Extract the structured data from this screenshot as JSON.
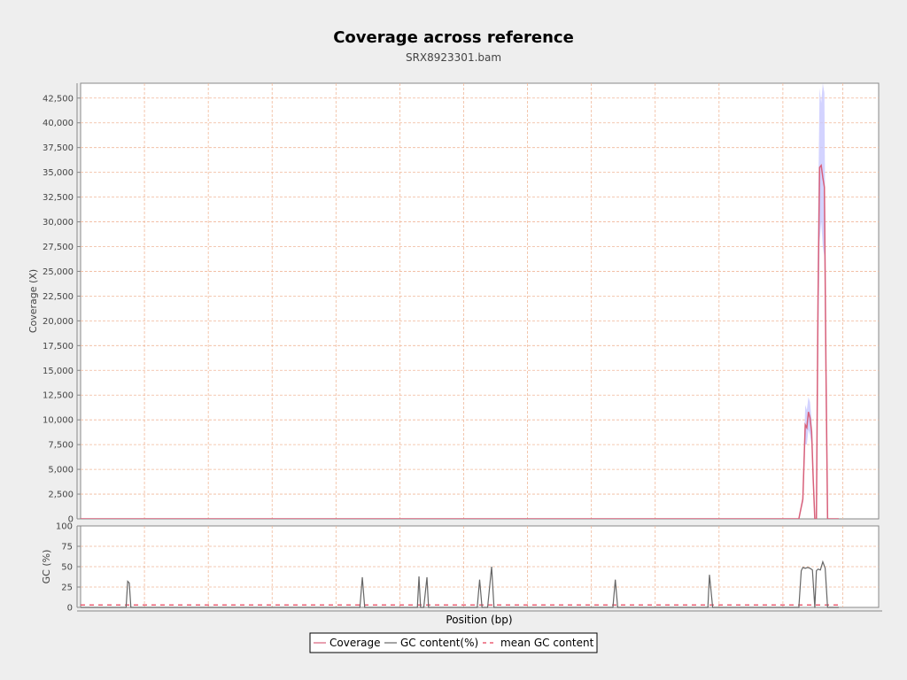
{
  "chart_data": {
    "type": "line",
    "title": "Coverage across reference",
    "subtitle": "SRX8923301.bam",
    "grid": true,
    "legend_placement": "bottom-center",
    "colors": {
      "coverage": "#d8607a",
      "coverage_band": "#c8c8ff",
      "gc": "#666666",
      "mean_gc": "#e8405a",
      "grid": "#f0b89a",
      "plot_bg": "#ffffff"
    },
    "coverage_panel": {
      "ylabel": "Coverage (X)",
      "ylim": [
        0,
        44000
      ],
      "yticks": [
        0,
        2500,
        5000,
        7500,
        10000,
        12500,
        15000,
        17500,
        20000,
        22500,
        25000,
        27500,
        30000,
        32500,
        35000,
        37500,
        40000,
        42500
      ],
      "ytick_labels": [
        "0",
        "2,500",
        "5,000",
        "7,500",
        "10,000",
        "12,500",
        "15,000",
        "17,500",
        "20,000",
        "22,500",
        "25,000",
        "27,500",
        "30,000",
        "32,500",
        "35,000",
        "37,500",
        "40,000",
        "42,500"
      ],
      "series": [
        {
          "name": "Coverage",
          "x": [
            0,
            0.9,
            0.905,
            0.908,
            0.91,
            0.912,
            0.914,
            0.916,
            0.918,
            0.92,
            0.922,
            0.924,
            0.926,
            0.928,
            0.93,
            0.932,
            0.934,
            0.936,
            0.938,
            0.95
          ],
          "y": [
            0,
            0,
            2000,
            9500,
            9200,
            10800,
            10200,
            8800,
            4000,
            0,
            0,
            22000,
            35500,
            35700,
            34500,
            33500,
            15000,
            0,
            0,
            0
          ]
        }
      ],
      "band": {
        "x": [
          0.905,
          0.908,
          0.91,
          0.912,
          0.914,
          0.916,
          0.918,
          0.92,
          0.922,
          0.924,
          0.926,
          0.928,
          0.93,
          0.932,
          0.934,
          0.936
        ],
        "upper": [
          3000,
          11500,
          11000,
          12300,
          11800,
          10000,
          5000,
          0,
          0,
          30000,
          43500,
          42000,
          44000,
          43000,
          20000,
          0
        ],
        "lower": [
          1000,
          7500,
          7500,
          9000,
          8500,
          7500,
          3000,
          0,
          0,
          15000,
          28000,
          30000,
          27500,
          26500,
          10000,
          0
        ]
      }
    },
    "gc_panel": {
      "ylabel": "GC (%)",
      "ylim": [
        0,
        100
      ],
      "yticks": [
        0,
        25,
        50,
        75,
        100
      ],
      "ytick_labels": [
        "0",
        "25",
        "50",
        "75",
        "100"
      ],
      "series": [
        {
          "name": "GC content(%)",
          "x": [
            0,
            0.057,
            0.059,
            0.061,
            0.063,
            0.06301,
            0.35,
            0.353,
            0.356,
            0.35601,
            0.422,
            0.424,
            0.426,
            0.42601,
            0.43,
            0.434,
            0.436,
            0.43601,
            0.497,
            0.5,
            0.503,
            0.50301,
            0.51,
            0.515,
            0.518,
            0.51801,
            0.667,
            0.67,
            0.673,
            0.67301,
            0.786,
            0.788,
            0.792,
            0.79201,
            0.9,
            0.903,
            0.905,
            0.908,
            0.911,
            0.914,
            0.917,
            0.92,
            0.92001,
            0.922,
            0.924,
            0.927,
            0.93,
            0.933,
            0.936,
            0.93601,
            0.95
          ],
          "y": [
            0,
            0,
            32,
            30,
            0,
            0,
            0,
            37,
            0,
            0,
            0,
            38,
            0,
            0,
            0,
            37,
            0,
            0,
            0,
            34,
            0,
            0,
            0,
            50,
            0,
            0,
            0,
            34,
            0,
            0,
            0,
            40,
            0,
            0,
            0,
            45,
            49,
            48,
            49,
            48,
            46,
            0,
            0,
            45,
            47,
            46,
            56,
            48,
            0,
            0,
            0
          ]
        }
      ],
      "mean_gc": {
        "name": "mean GC content",
        "value": 3
      }
    },
    "xlabel": "Position (bp)",
    "legend": [
      {
        "name": "Coverage",
        "style": "solid",
        "color": "#d8607a"
      },
      {
        "name": "GC content(%)",
        "style": "solid",
        "color": "#666666"
      },
      {
        "name": "mean GC content",
        "style": "dashed",
        "color": "#e8405a"
      }
    ]
  }
}
